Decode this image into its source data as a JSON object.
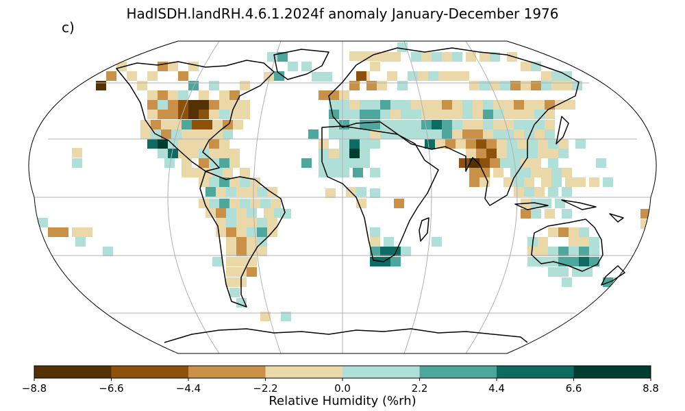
{
  "title": "HadISDH.landRH.4.6.1.2024f anomaly January-December 1976",
  "panel_label": "c)",
  "colorbar": {
    "label": "Relative Humidity (%rh)",
    "ticks": [
      "−8.8",
      "−6.6",
      "−4.4",
      "−2.2",
      "0.0",
      "2.2",
      "4.4",
      "6.6",
      "8.8"
    ],
    "colors": [
      "#543005",
      "#8c510a",
      "#c99148",
      "#ebd8a8",
      "#b0dfd8",
      "#4ea79c",
      "#0d6b62",
      "#003c30"
    ]
  }
}
